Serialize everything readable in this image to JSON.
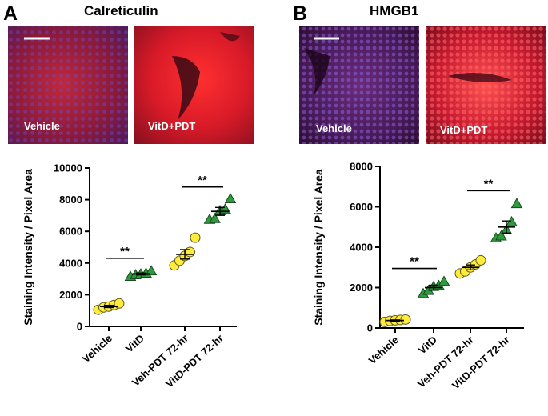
{
  "panels": [
    {
      "letter": "A",
      "title": "Calreticulin",
      "image_labels": [
        "Vehicle",
        "VitD+PDT"
      ],
      "image_colors": {
        "vehicle": "#7a1024",
        "treated": "#d6182a",
        "nuclei": "#5a3aa8"
      }
    },
    {
      "letter": "B",
      "title": "HMGB1",
      "image_labels": [
        "Vehicle",
        "VitD+PDT"
      ],
      "image_colors": {
        "vehicle": "#4a1040",
        "treated": "#c01830",
        "nuclei": "#6a4ad0"
      }
    }
  ],
  "chart_data": [
    {
      "type": "scatter",
      "title": "",
      "ylabel": "Staining Intensity / Pixel Area",
      "xlabel": "",
      "categories": [
        "Vehicle",
        "VitD",
        "Veh-PDT 72-hr",
        "VitD-PDT 72-hr"
      ],
      "ylim": [
        0,
        10000
      ],
      "yticks": [
        0,
        2000,
        4000,
        6000,
        8000,
        10000
      ],
      "markers": [
        "circle",
        "triangle",
        "circle",
        "triangle"
      ],
      "colors": [
        "#ffeb3b",
        "#2e9a3e",
        "#ffeb3b",
        "#2e9a3e"
      ],
      "points": [
        [
          1050,
          1200,
          1250,
          1350,
          1450
        ],
        [
          3150,
          3250,
          3300,
          3350,
          3500
        ],
        [
          3850,
          4150,
          4450,
          4700,
          5600
        ],
        [
          6750,
          6800,
          7300,
          7400,
          8050
        ]
      ],
      "means": [
        1260,
        3310,
        4550,
        7260
      ],
      "sems": [
        70,
        60,
        300,
        250
      ],
      "significance": [
        {
          "from": 0,
          "to": 1,
          "y": 4300,
          "label": "**"
        },
        {
          "from": 2,
          "to": 3,
          "y": 8800,
          "label": "**"
        }
      ]
    },
    {
      "type": "scatter",
      "title": "",
      "ylabel": "Staining Intensity / Pixel Area",
      "xlabel": "",
      "categories": [
        "Vehicle",
        "VitD",
        "Veh-PDT 72-hr",
        "VitD-PDT 72-hr"
      ],
      "ylim": [
        0,
        8000
      ],
      "yticks": [
        0,
        2000,
        4000,
        6000,
        8000
      ],
      "markers": [
        "circle",
        "triangle",
        "circle",
        "triangle"
      ],
      "colors": [
        "#ffeb3b",
        "#2e9a3e",
        "#ffeb3b",
        "#2e9a3e"
      ],
      "points": [
        [
          300,
          350,
          380,
          400,
          420
        ],
        [
          1700,
          1850,
          2050,
          2100,
          2300
        ],
        [
          2700,
          2800,
          3000,
          3150,
          3350
        ],
        [
          4450,
          4550,
          4850,
          5250,
          6150
        ]
      ],
      "means": [
        370,
        2000,
        3000,
        5000
      ],
      "sems": [
        30,
        120,
        120,
        300
      ],
      "significance": [
        {
          "from": 0,
          "to": 1,
          "y": 2950,
          "label": "**"
        },
        {
          "from": 2,
          "to": 3,
          "y": 6800,
          "label": "**"
        }
      ]
    }
  ]
}
